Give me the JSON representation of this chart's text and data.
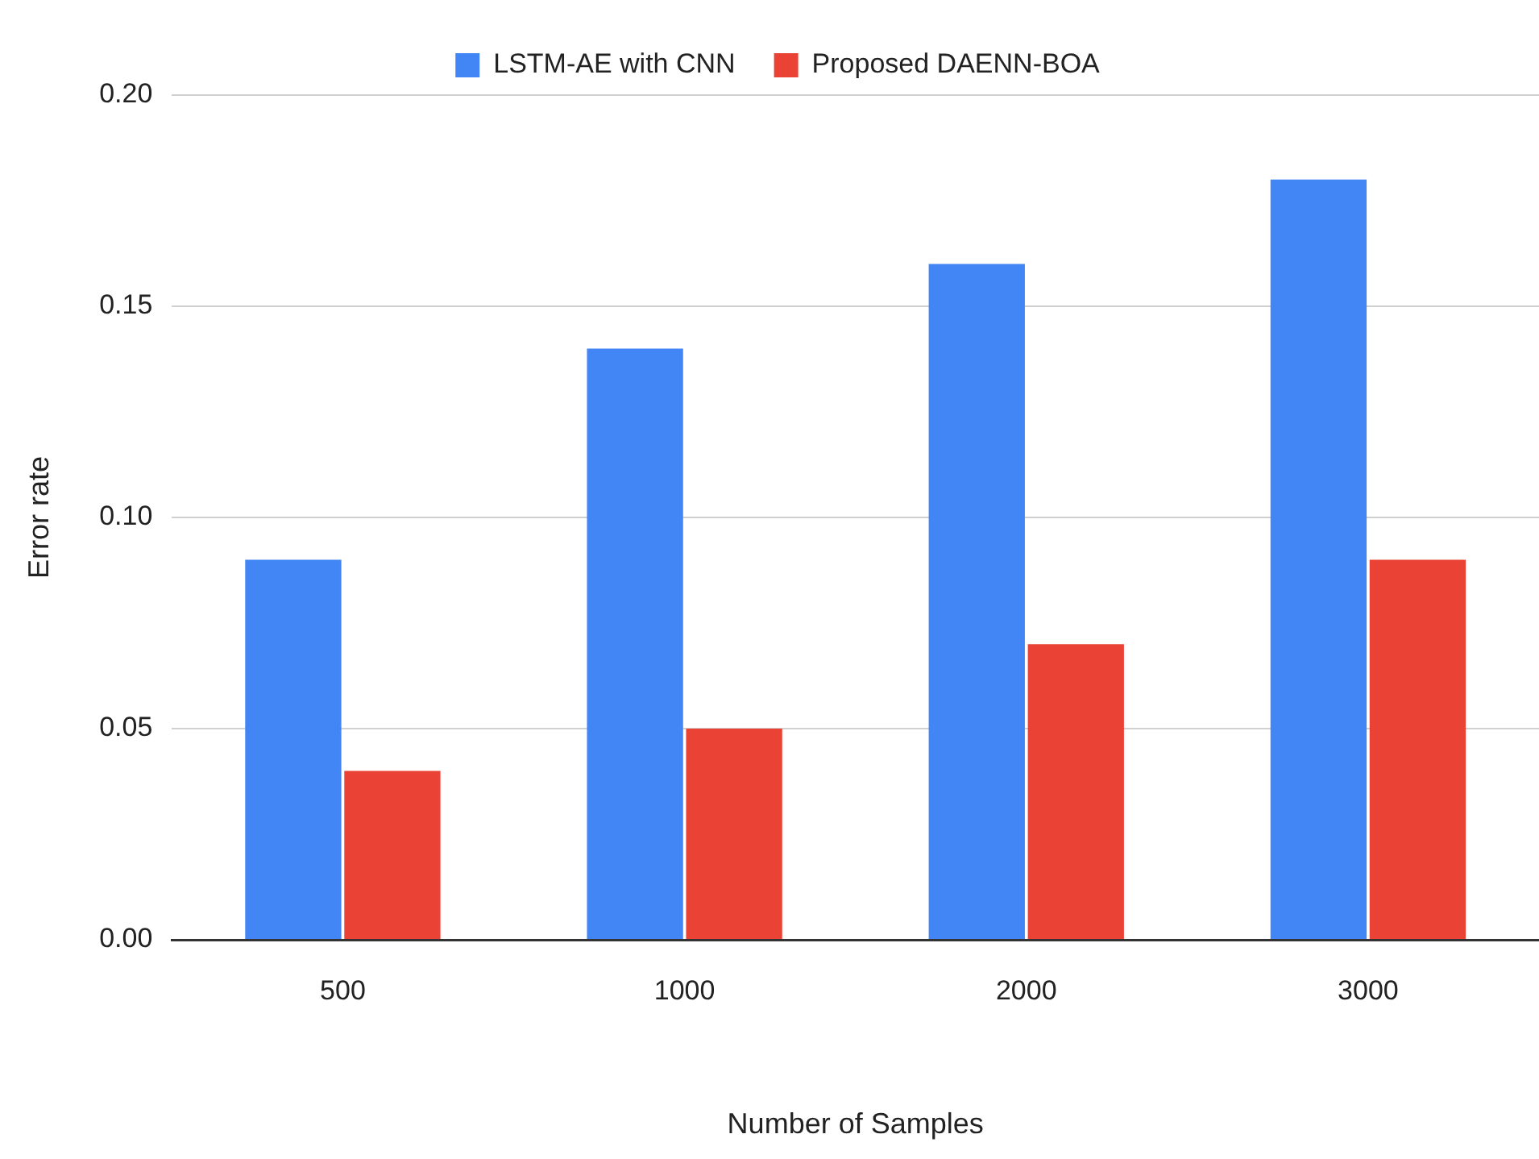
{
  "chart_data": {
    "type": "bar",
    "xlabel": "Number of Samples",
    "ylabel": "Error rate",
    "categories": [
      "500",
      "1000",
      "2000",
      "3000"
    ],
    "series": [
      {
        "name": "LSTM-AE with CNN",
        "color": "#4285f4",
        "values": [
          0.09,
          0.14,
          0.16,
          0.18
        ]
      },
      {
        "name": "Proposed DAENN-BOA",
        "color": "#ea4335",
        "values": [
          0.04,
          0.05,
          0.07,
          0.09
        ]
      }
    ],
    "ylim": [
      0,
      0.2
    ],
    "yticks": [
      {
        "value": 0,
        "label": "0.00"
      },
      {
        "value": 0.05,
        "label": "0.05"
      },
      {
        "value": 0.1,
        "label": "0.10"
      },
      {
        "value": 0.15,
        "label": "0.15"
      },
      {
        "value": 0.2,
        "label": "0.20"
      }
    ],
    "grid": "y",
    "legend": "top"
  }
}
